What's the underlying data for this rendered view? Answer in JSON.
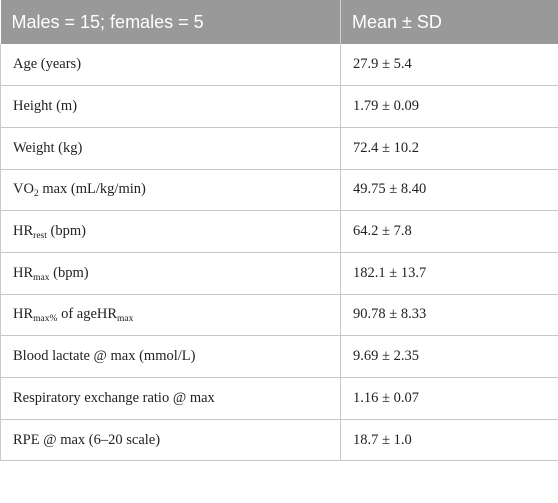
{
  "table": {
    "header": {
      "col1": "Males = 15; females = 5",
      "col2": "Mean ± SD"
    },
    "rows": [
      {
        "label": "Age (years)",
        "value": "27.9 ± 5.4"
      },
      {
        "label": "Height (m)",
        "value": "1.79 ± 0.09"
      },
      {
        "label": "Weight (kg)",
        "value": "72.4 ± 10.2"
      },
      {
        "label_main": "VO",
        "label_sub": "2",
        "label_rest": " max (mL/kg/min)",
        "value": "49.75 ± 8.40"
      },
      {
        "label_main": "HR",
        "label_sub": "rest",
        "label_rest": " (bpm)",
        "value": "64.2 ± 7.8"
      },
      {
        "label_main": "HR",
        "label_sub": "max",
        "label_rest": " (bpm)",
        "value": "182.1 ± 13.7"
      },
      {
        "label_main": "HR",
        "label_sub": "max%",
        "label_mid": " of ageHR",
        "label_sub2": "max",
        "value": "90.78 ± 8.33"
      },
      {
        "label": "Blood lactate @ max (mmol/L)",
        "value": "9.69 ± 2.35"
      },
      {
        "label": "Respiratory exchange ratio @ max",
        "value": "1.16 ± 0.07"
      },
      {
        "label": "RPE @ max (6–20 scale)",
        "value": "18.7 ± 1.0"
      }
    ]
  }
}
